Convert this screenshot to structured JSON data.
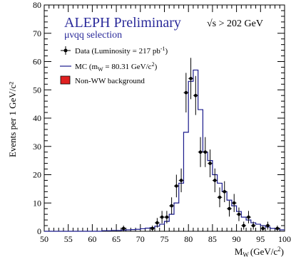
{
  "chart_data": {
    "type": "line",
    "title": "ALEPH Preliminary",
    "energy_label": "√s > 202 GeV",
    "subtitle": "μνqq selection",
    "xlabel_main": "M",
    "xlabel_sub": "W",
    "xlabel_unit": "(GeV/c",
    "xlabel_unit_sup": "2",
    "xlabel_close": ")",
    "ylabel": "Events per 1 GeV/c²",
    "xlim": [
      50,
      100
    ],
    "ylim": [
      0,
      80
    ],
    "x_ticks": [
      "50",
      "55",
      "60",
      "65",
      "70",
      "75",
      "80",
      "85",
      "90",
      "95",
      "100"
    ],
    "y_ticks": [
      "0",
      "10",
      "20",
      "30",
      "40",
      "50",
      "60",
      "70",
      "80"
    ],
    "legend": {
      "data": {
        "text": "Data  (Luminosity = 217 pb",
        "sup": "-1",
        "close": ")"
      },
      "mc": {
        "text": "MC (m",
        "sub": "W",
        "mid": " = 80.31 GeV/c",
        "sup": "2",
        "close": ")"
      },
      "bkg": {
        "text": "Non-WW background"
      }
    },
    "colors": {
      "mc": "#1a1a8c",
      "bkg": "#e02020",
      "title": "#2a2a9a"
    },
    "mc_histogram": {
      "bin_width": 1,
      "bins": [
        [
          50,
          0
        ],
        [
          51,
          0
        ],
        [
          52,
          0
        ],
        [
          53,
          0
        ],
        [
          54,
          0
        ],
        [
          55,
          0
        ],
        [
          56,
          0
        ],
        [
          57,
          0
        ],
        [
          58,
          0
        ],
        [
          59,
          0
        ],
        [
          60,
          0
        ],
        [
          61,
          0
        ],
        [
          62,
          0.2
        ],
        [
          63,
          0.2
        ],
        [
          64,
          0.3
        ],
        [
          65,
          0.3
        ],
        [
          66,
          0.4
        ],
        [
          67,
          0.5
        ],
        [
          68,
          0.6
        ],
        [
          69,
          0.7
        ],
        [
          70,
          0.9
        ],
        [
          71,
          1.1
        ],
        [
          72,
          1.3
        ],
        [
          73,
          1.8
        ],
        [
          74,
          2.5
        ],
        [
          75,
          3.5
        ],
        [
          76,
          6
        ],
        [
          77,
          10
        ],
        [
          78,
          17
        ],
        [
          79,
          35
        ],
        [
          80,
          53
        ],
        [
          81,
          57
        ],
        [
          82,
          43
        ],
        [
          83,
          28
        ],
        [
          84,
          25
        ],
        [
          85,
          20
        ],
        [
          86,
          17
        ],
        [
          87,
          14
        ],
        [
          88,
          11
        ],
        [
          89,
          9
        ],
        [
          90,
          7
        ],
        [
          91,
          5
        ],
        [
          92,
          4
        ],
        [
          93,
          3
        ],
        [
          94,
          2.5
        ],
        [
          95,
          2
        ],
        [
          96,
          1.5
        ],
        [
          97,
          1
        ],
        [
          98,
          0.8
        ],
        [
          99,
          0.5
        ]
      ]
    },
    "data_points": [
      {
        "x": 66.5,
        "y": 1,
        "err": 1
      },
      {
        "x": 72.5,
        "y": 1,
        "err": 1
      },
      {
        "x": 73.5,
        "y": 3,
        "err": 1.7
      },
      {
        "x": 74.5,
        "y": 5,
        "err": 2.2
      },
      {
        "x": 75.5,
        "y": 5,
        "err": 2.2
      },
      {
        "x": 76.5,
        "y": 9,
        "err": 3
      },
      {
        "x": 77.5,
        "y": 16,
        "err": 4
      },
      {
        "x": 78.5,
        "y": 18,
        "err": 4.2
      },
      {
        "x": 79.5,
        "y": 49,
        "err": 7
      },
      {
        "x": 80.5,
        "y": 54,
        "err": 7.3
      },
      {
        "x": 81.5,
        "y": 48,
        "err": 6.9
      },
      {
        "x": 82.5,
        "y": 28,
        "err": 5.3
      },
      {
        "x": 83.5,
        "y": 28,
        "err": 5.3
      },
      {
        "x": 84.5,
        "y": 24,
        "err": 4.9
      },
      {
        "x": 85.5,
        "y": 18,
        "err": 4.2
      },
      {
        "x": 86.5,
        "y": 12,
        "err": 3.5
      },
      {
        "x": 87.5,
        "y": 14,
        "err": 3.7
      },
      {
        "x": 88.5,
        "y": 8,
        "err": 2.8
      },
      {
        "x": 89.5,
        "y": 10,
        "err": 3.2
      },
      {
        "x": 90.5,
        "y": 6,
        "err": 2.4
      },
      {
        "x": 91.5,
        "y": 2,
        "err": 1.4
      },
      {
        "x": 92.5,
        "y": 5,
        "err": 2.2
      },
      {
        "x": 93.5,
        "y": 2,
        "err": 1.4
      },
      {
        "x": 95.5,
        "y": 1,
        "err": 1
      },
      {
        "x": 96.5,
        "y": 2,
        "err": 1.4
      },
      {
        "x": 98.5,
        "y": 1,
        "err": 1
      }
    ]
  }
}
